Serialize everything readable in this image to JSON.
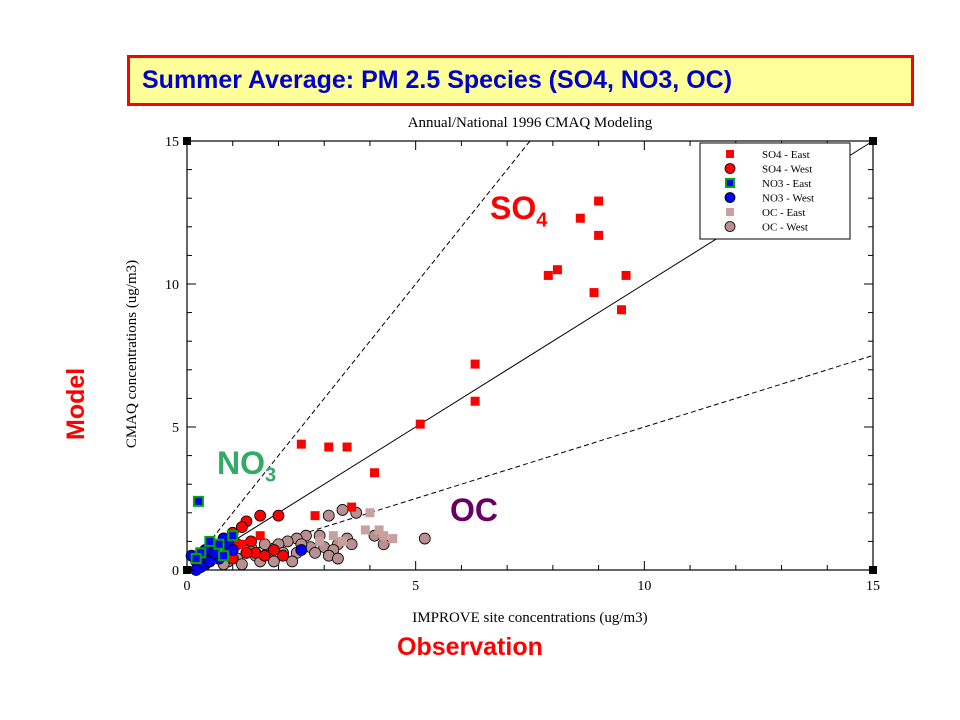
{
  "slide": {
    "title": "Summer Average: PM 2.5 Species (SO4, NO3, OC)",
    "model_label": "Model",
    "observation_label": "Observation",
    "so4_label": "SO",
    "so4_sub": "4",
    "no3_label": "NO",
    "no3_sub": "3",
    "oc_label": "OC"
  },
  "colors": {
    "title_bg": "#ffff99",
    "title_border": "#ff0000",
    "title_text": "#0000cc",
    "so4": "#ff0000",
    "no3": "#0000ff",
    "no3_east_border": "#00aa00",
    "oc": "#c8a0a0"
  },
  "chart_data": {
    "type": "scatter",
    "title": "Annual/National 1996 CMAQ Modeling",
    "xlabel": "IMPROVE site concentrations (ug/m3)",
    "ylabel": "CMAQ concentrations (ug/m3)",
    "xlim": [
      0,
      15
    ],
    "ylim": [
      0,
      15
    ],
    "xticks": [
      0,
      5,
      10,
      15
    ],
    "yticks": [
      0,
      5,
      10,
      15
    ],
    "reference_lines": [
      {
        "name": "1:1",
        "slope": 1,
        "style": "solid"
      },
      {
        "name": "2:1",
        "slope": 2,
        "style": "dashed"
      },
      {
        "name": "1:2",
        "slope": 0.5,
        "style": "dashed"
      }
    ],
    "legend_position": "top-right",
    "series": [
      {
        "name": "SO4 - East",
        "marker": "square",
        "color": "#ff0000",
        "points": [
          [
            9.0,
            12.9
          ],
          [
            8.6,
            12.3
          ],
          [
            9.0,
            11.7
          ],
          [
            8.1,
            10.5
          ],
          [
            7.9,
            10.3
          ],
          [
            9.6,
            10.3
          ],
          [
            8.9,
            9.7
          ],
          [
            9.5,
            9.1
          ],
          [
            6.3,
            7.2
          ],
          [
            6.3,
            5.9
          ],
          [
            5.1,
            5.1
          ],
          [
            2.5,
            4.4
          ],
          [
            3.1,
            4.3
          ],
          [
            3.5,
            4.3
          ],
          [
            4.1,
            3.4
          ],
          [
            3.6,
            2.2
          ],
          [
            2.8,
            1.9
          ],
          [
            1.6,
            1.2
          ],
          [
            1.2,
            0.9
          ],
          [
            0.9,
            0.7
          ],
          [
            0.6,
            0.5
          ]
        ]
      },
      {
        "name": "SO4 - West",
        "marker": "circle",
        "color": "#ff0000",
        "points": [
          [
            1.6,
            1.9
          ],
          [
            2.0,
            1.9
          ],
          [
            1.3,
            1.7
          ],
          [
            1.2,
            1.5
          ],
          [
            1.0,
            1.3
          ],
          [
            1.4,
            1.0
          ],
          [
            0.8,
            1.1
          ],
          [
            1.1,
            0.9
          ],
          [
            0.6,
            0.8
          ],
          [
            0.9,
            0.7
          ],
          [
            0.5,
            0.6
          ],
          [
            1.5,
            0.6
          ],
          [
            1.7,
            0.5
          ],
          [
            2.1,
            0.5
          ],
          [
            1.9,
            0.7
          ],
          [
            1.3,
            0.6
          ],
          [
            0.7,
            0.4
          ],
          [
            1.0,
            0.4
          ],
          [
            0.4,
            0.5
          ]
        ]
      },
      {
        "name": "NO3 - East",
        "marker": "square",
        "color": "#0000ff",
        "points": [
          [
            0.25,
            2.4
          ],
          [
            0.5,
            1.0
          ],
          [
            0.3,
            0.6
          ],
          [
            0.2,
            0.4
          ],
          [
            0.7,
            0.9
          ],
          [
            0.8,
            0.5
          ],
          [
            1.0,
            1.2
          ]
        ]
      },
      {
        "name": "NO3 - West",
        "marker": "circle",
        "color": "#0000ff",
        "points": [
          [
            0.8,
            1.1
          ],
          [
            0.9,
            0.9
          ],
          [
            0.6,
            0.8
          ],
          [
            0.5,
            0.6
          ],
          [
            0.3,
            0.5
          ],
          [
            0.2,
            0.3
          ],
          [
            0.4,
            0.2
          ],
          [
            0.1,
            0.5
          ],
          [
            0.7,
            0.4
          ],
          [
            0.3,
            0.1
          ],
          [
            0.5,
            0.3
          ],
          [
            2.5,
            0.7
          ],
          [
            0.2,
            0.0
          ],
          [
            0.6,
            0.6
          ],
          [
            1.0,
            0.7
          ],
          [
            0.4,
            0.7
          ]
        ]
      },
      {
        "name": "OC - East",
        "marker": "square",
        "color": "#c8a0a0",
        "points": [
          [
            4.0,
            2.0
          ],
          [
            3.9,
            1.4
          ],
          [
            4.2,
            1.4
          ],
          [
            4.5,
            1.1
          ],
          [
            3.4,
            1.0
          ],
          [
            3.2,
            1.2
          ],
          [
            2.9,
            1.0
          ],
          [
            4.3,
            1.2
          ]
        ]
      },
      {
        "name": "OC - West",
        "marker": "circle",
        "color": "#b89090",
        "points": [
          [
            3.4,
            2.1
          ],
          [
            3.7,
            2.0
          ],
          [
            3.1,
            1.9
          ],
          [
            2.6,
            1.2
          ],
          [
            2.9,
            1.2
          ],
          [
            2.4,
            1.1
          ],
          [
            2.2,
            1.0
          ],
          [
            2.0,
            0.9
          ],
          [
            2.7,
            0.8
          ],
          [
            3.0,
            0.8
          ],
          [
            3.3,
            0.9
          ],
          [
            3.5,
            1.1
          ],
          [
            3.6,
            0.9
          ],
          [
            4.1,
            1.2
          ],
          [
            4.3,
            0.9
          ],
          [
            5.2,
            1.1
          ],
          [
            1.8,
            0.7
          ],
          [
            2.1,
            0.6
          ],
          [
            2.4,
            0.6
          ],
          [
            2.8,
            0.6
          ],
          [
            3.2,
            0.7
          ],
          [
            3.1,
            0.5
          ],
          [
            3.3,
            0.4
          ],
          [
            1.5,
            0.5
          ],
          [
            1.3,
            0.6
          ],
          [
            1.1,
            0.4
          ],
          [
            0.9,
            0.3
          ],
          [
            1.2,
            0.2
          ],
          [
            1.6,
            0.3
          ],
          [
            1.9,
            0.3
          ],
          [
            0.8,
            0.2
          ],
          [
            2.3,
            0.3
          ],
          [
            1.4,
            0.8
          ],
          [
            1.7,
            0.9
          ],
          [
            2.5,
            0.9
          ]
        ]
      }
    ]
  }
}
